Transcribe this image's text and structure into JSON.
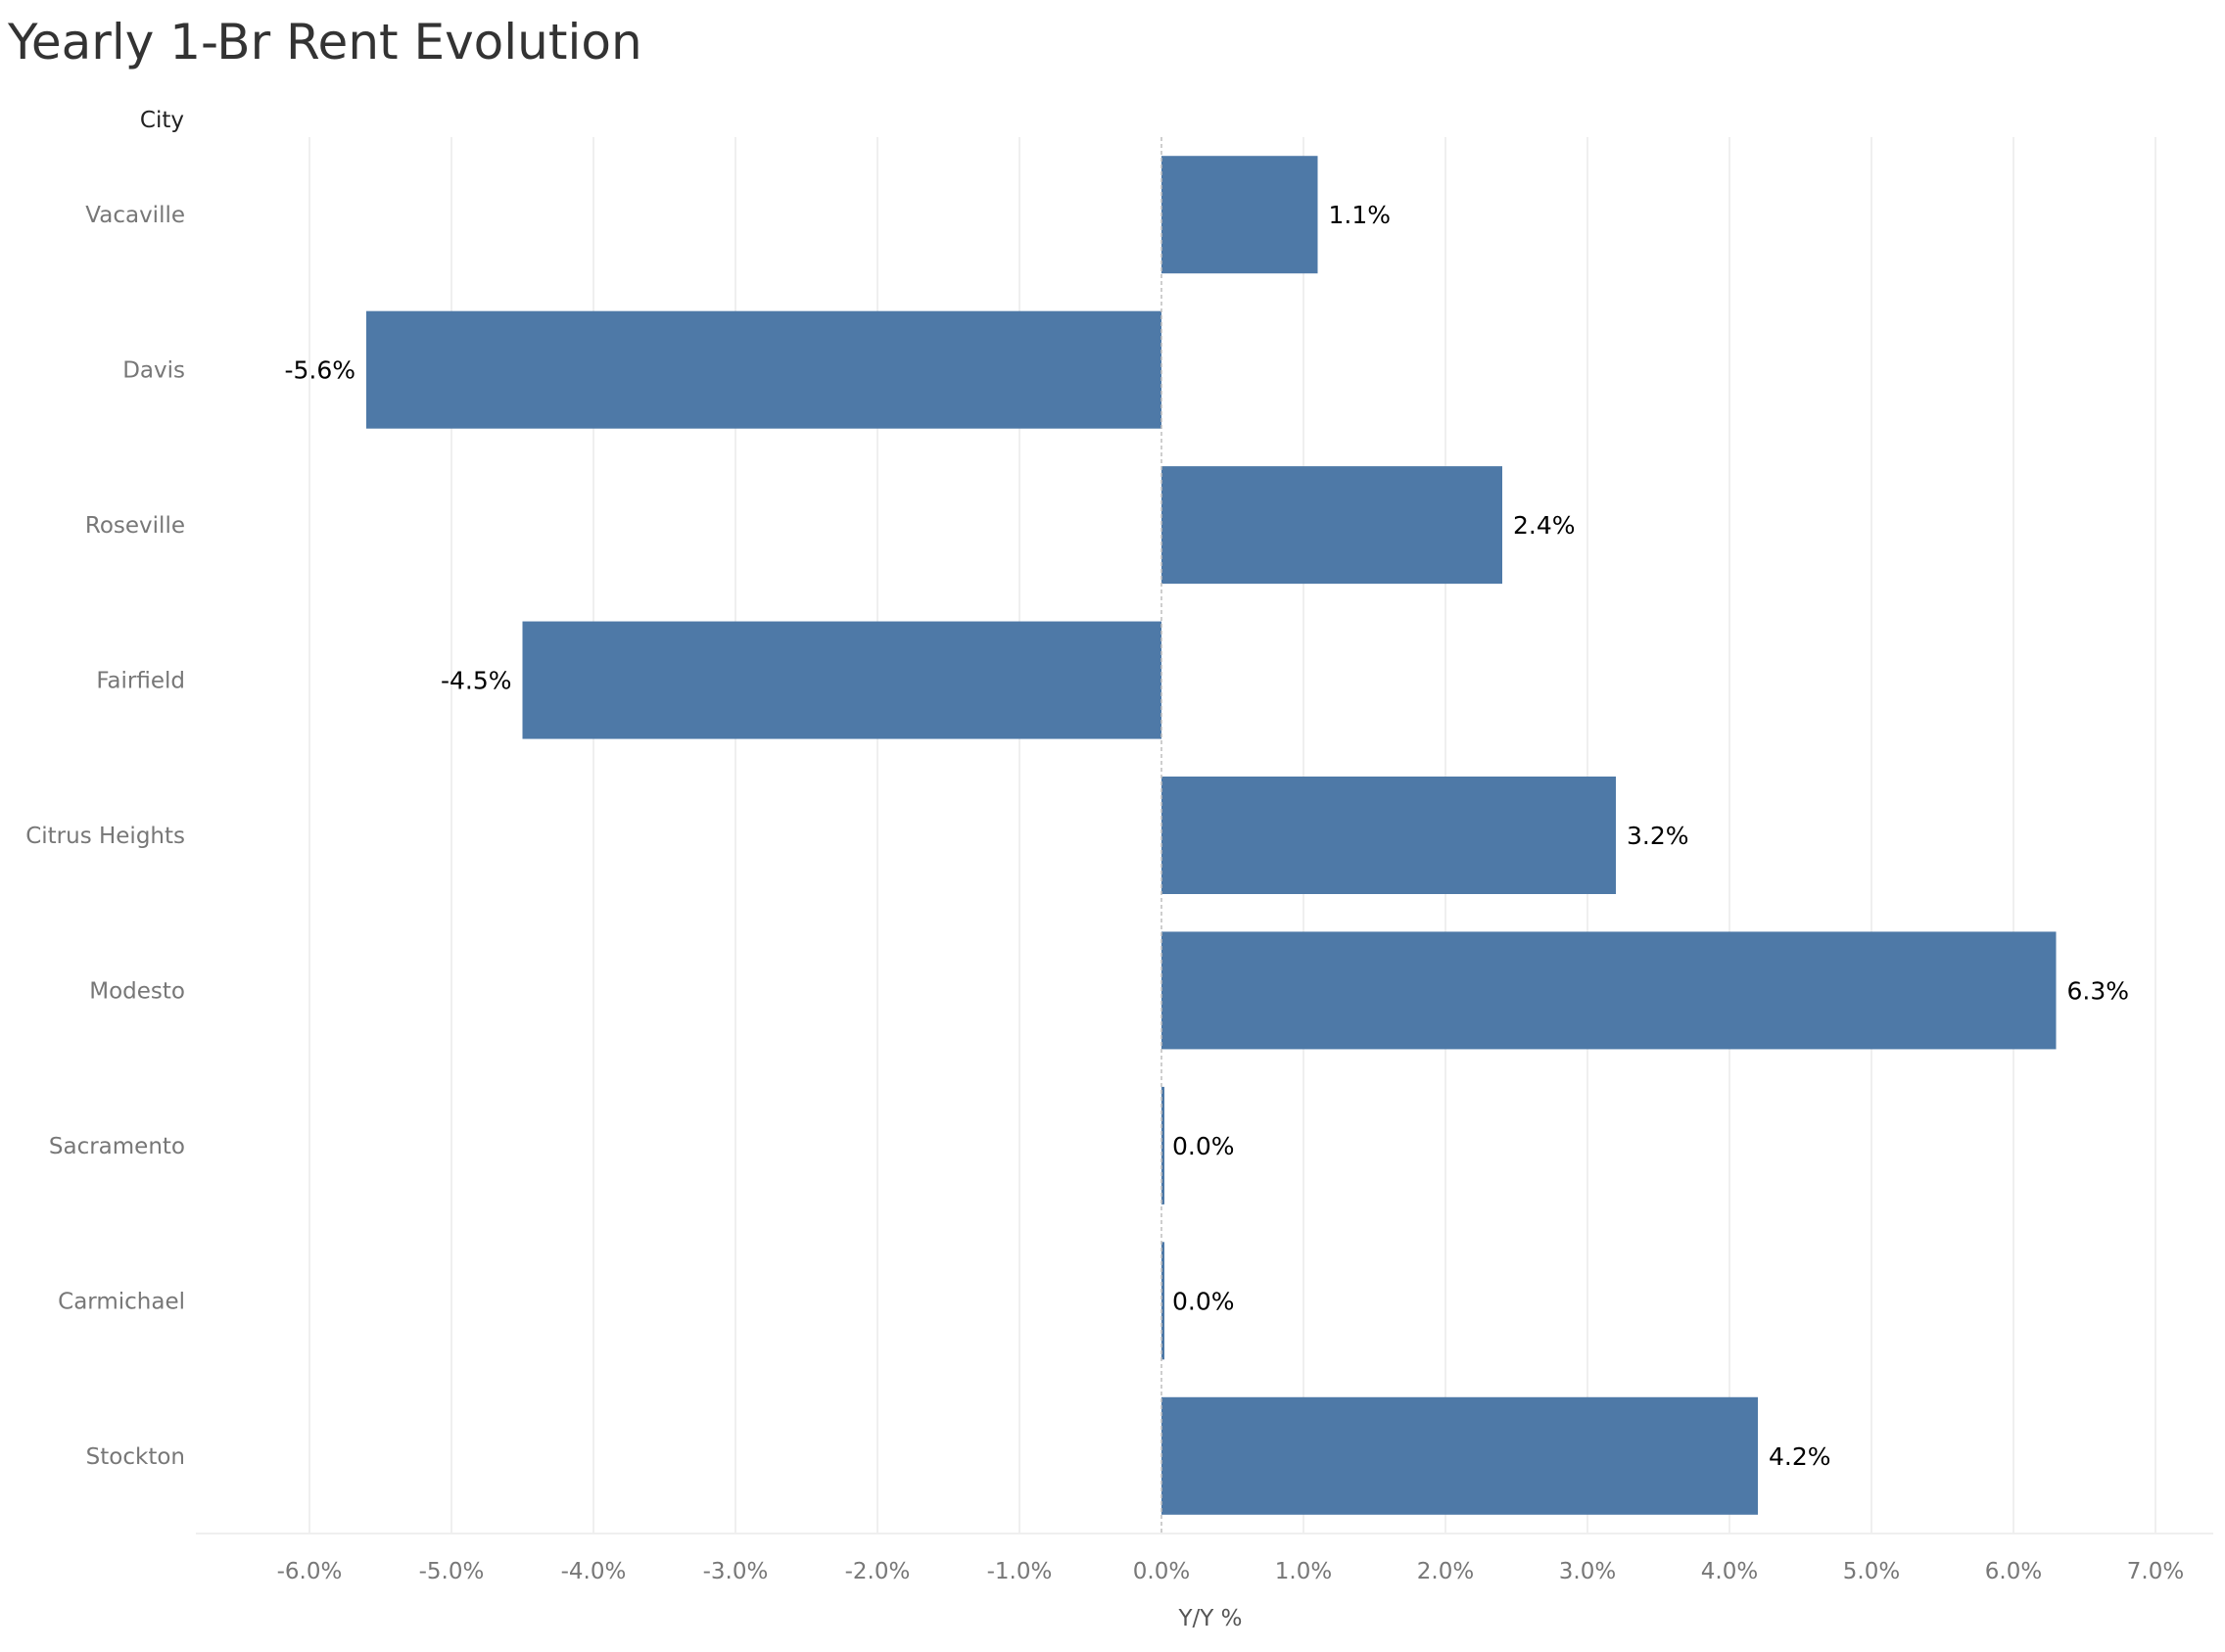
{
  "chart_data": {
    "type": "bar",
    "orientation": "horizontal",
    "title": "Yearly 1-Br Rent Evolution",
    "category_header": "City",
    "xlabel": "Y/Y %",
    "categories": [
      "Vacaville",
      "Davis",
      "Roseville",
      "Fairfield",
      "Citrus Heights",
      "Modesto",
      "Sacramento",
      "Carmichael",
      "Stockton"
    ],
    "values": [
      1.1,
      -5.6,
      2.4,
      -4.5,
      3.2,
      6.3,
      0.0,
      0.0,
      4.2
    ],
    "value_labels": [
      "1.1%",
      "-5.6%",
      "2.4%",
      "-4.5%",
      "3.2%",
      "6.3%",
      "0.0%",
      "0.0%",
      "4.2%"
    ],
    "xlim": [
      -6.8,
      7.2
    ],
    "x_ticks": [
      -6,
      -5,
      -4,
      -3,
      -2,
      -1,
      0,
      1,
      2,
      3,
      4,
      5,
      6,
      7
    ],
    "x_tick_labels": [
      "-6.0%",
      "-5.0%",
      "-4.0%",
      "-3.0%",
      "-2.0%",
      "-1.0%",
      "0.0%",
      "1.0%",
      "2.0%",
      "3.0%",
      "4.0%",
      "5.0%",
      "6.0%",
      "7.0%"
    ],
    "grid": "vertical",
    "colors": {
      "bar": "#4e79a7",
      "grid": "#efefef",
      "zero_line": "#bdbdbd",
      "axis_text": "#777777",
      "label_text": "#000000",
      "title_text": "#333333"
    }
  }
}
